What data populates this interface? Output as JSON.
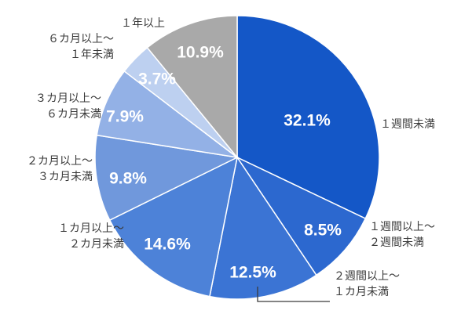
{
  "chart_data": {
    "type": "pie",
    "start_angle_deg": 0,
    "direction": "clockwise",
    "slices": [
      {
        "label_lines": [
          "１週間未満"
        ],
        "value": 32.1,
        "display": "32.1%",
        "color": "#1457c7"
      },
      {
        "label_lines": [
          "１週間以上～",
          "２週間未満"
        ],
        "value": 8.5,
        "display": "8.5%",
        "color": "#2c68cf"
      },
      {
        "label_lines": [
          "２週間以上～",
          "１カ月未満"
        ],
        "value": 12.5,
        "display": "12.5%",
        "color": "#3b74d4"
      },
      {
        "label_lines": [
          "１カ月以上～",
          "２カ月未満"
        ],
        "value": 14.6,
        "display": "14.6%",
        "color": "#4d82d8"
      },
      {
        "label_lines": [
          "２カ月以上～",
          "３カ月未満"
        ],
        "value": 9.8,
        "display": "9.8%",
        "color": "#7098dc"
      },
      {
        "label_lines": [
          "３カ月以上～",
          "６カ月未満"
        ],
        "value": 7.9,
        "display": "7.9%",
        "color": "#93b1e6"
      },
      {
        "label_lines": [
          "６カ月以上～",
          "１年未満"
        ],
        "value": 3.7,
        "display": "3.7%",
        "color": "#bdd0f0"
      },
      {
        "label_lines": [
          "１年以上"
        ],
        "value": 10.9,
        "display": "10.9%",
        "color": "#a9a9a9"
      }
    ]
  }
}
